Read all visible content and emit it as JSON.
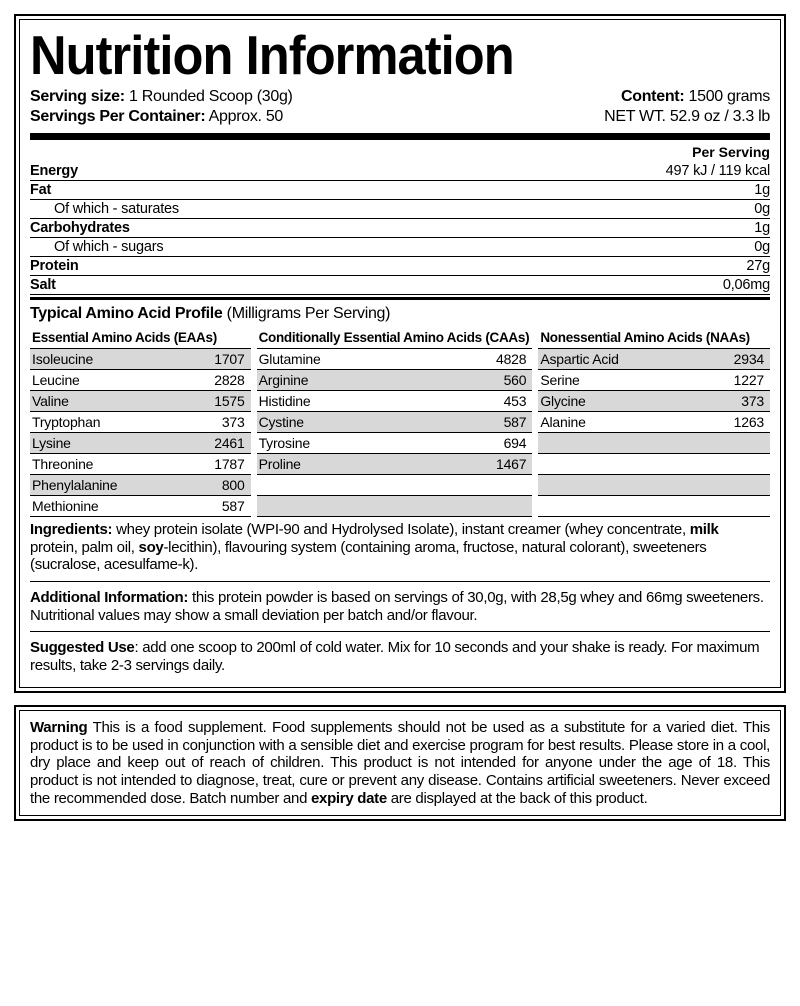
{
  "title": "Nutrition Information",
  "meta": {
    "serving_size_label": "Serving size:",
    "serving_size_value": "1 Rounded Scoop (30g)",
    "servings_per_label": "Servings Per Container:",
    "servings_per_value": "Approx. 50",
    "content_label": "Content:",
    "content_value": "1500 grams",
    "netwt": "NET WT. 52.9 oz / 3.3 lb"
  },
  "per_serving_label": "Per Serving",
  "nutrition": [
    {
      "name": "Energy",
      "value": "497 kJ / 119 kcal",
      "type": "main"
    },
    {
      "name": "Fat",
      "value": "1g",
      "type": "main"
    },
    {
      "name": "Of which - saturates",
      "value": "0g",
      "type": "sub"
    },
    {
      "name": "Carbohydrates",
      "value": "1g",
      "type": "main"
    },
    {
      "name": "Of which - sugars",
      "value": "0g",
      "type": "sub"
    },
    {
      "name": "Protein",
      "value": "27g",
      "type": "main"
    },
    {
      "name": "Salt",
      "value": "0,06mg",
      "type": "main"
    }
  ],
  "amino_title_bold": "Typical Amino Acid Profile",
  "amino_title_rest": " (Milligrams Per Serving)",
  "amino_headers": [
    "Essential Amino Acids (EAAs)",
    "Conditionally Essential Amino Acids (CAAs)",
    "Nonessential Amino Acids (NAAs)"
  ],
  "amino_cols": [
    [
      {
        "name": "Isoleucine",
        "value": "1707",
        "alt": true
      },
      {
        "name": "Leucine",
        "value": "2828",
        "alt": false
      },
      {
        "name": "Valine",
        "value": "1575",
        "alt": true
      },
      {
        "name": "Tryptophan",
        "value": "373",
        "alt": false
      },
      {
        "name": "Lysine",
        "value": "2461",
        "alt": true
      },
      {
        "name": "Threonine",
        "value": "1787",
        "alt": false
      },
      {
        "name": "Phenylalanine",
        "value": "800",
        "alt": true
      },
      {
        "name": "Methionine",
        "value": "587",
        "alt": false
      }
    ],
    [
      {
        "name": "Glutamine",
        "value": "4828",
        "alt": false
      },
      {
        "name": "Arginine",
        "value": "560",
        "alt": true
      },
      {
        "name": "Histidine",
        "value": "453",
        "alt": false
      },
      {
        "name": "Cystine",
        "value": "587",
        "alt": true
      },
      {
        "name": "Tyrosine",
        "value": "694",
        "alt": false
      },
      {
        "name": "Proline",
        "value": "1467",
        "alt": true
      },
      {
        "name": "",
        "value": "",
        "alt": false
      },
      {
        "name": "",
        "value": "",
        "alt": true
      }
    ],
    [
      {
        "name": "Aspartic Acid",
        "value": "2934",
        "alt": true
      },
      {
        "name": "Serine",
        "value": "1227",
        "alt": false
      },
      {
        "name": "Glycine",
        "value": "373",
        "alt": true
      },
      {
        "name": "Alanine",
        "value": "1263",
        "alt": false
      },
      {
        "name": "",
        "value": "",
        "alt": true
      },
      {
        "name": "",
        "value": "",
        "alt": false
      },
      {
        "name": "",
        "value": "",
        "alt": true
      },
      {
        "name": "",
        "value": "",
        "alt": false
      }
    ]
  ],
  "ingredients_label": "Ingredients:",
  "ingredients_pre": " whey protein isolate (WPI-90 and Hydrolysed Isolate), instant creamer (whey concentrate, ",
  "ingredients_bold1": "milk",
  "ingredients_mid1": " protein, palm oil, ",
  "ingredients_bold2": "soy",
  "ingredients_post": "-lecithin), flavouring system (containing aroma, fructose, natural colorant), sweeteners (sucralose, acesulfame-k).",
  "additional_label": "Additional Information:",
  "additional_text": " this protein powder is based on servings of 30,0g, with 28,5g whey and 66mg sweeteners. Nutritional values may show a small deviation per batch and/or flavour.",
  "suggested_label": "Suggested Use",
  "suggested_text": ": add one scoop to 200ml of cold water. Mix for 10 seconds and your shake is ready. For maximum results, take 2-3 servings daily.",
  "warning_label": "Warning",
  "warning_pre": " This is a food supplement. Food supplements should not be used as a substitute for a varied diet. This product is to be used in conjunction with a sensible diet and exercise program for best results. Please store in a cool, dry place and keep out of reach of children. This product is not intended for anyone under the age of 18. This product is not intended to diagnose, treat, cure or prevent any disease. Contains artificial sweeteners. Never exceed the recommended dose. Batch number and ",
  "warning_bold": "expiry date",
  "warning_post": " are displayed at the back of this product."
}
